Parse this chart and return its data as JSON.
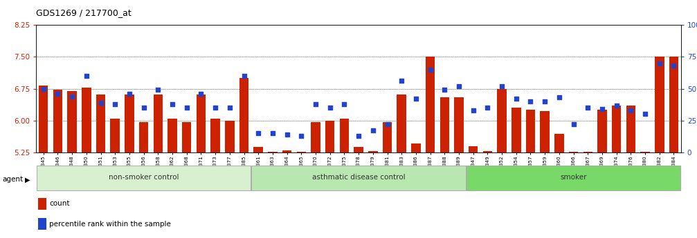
{
  "title": "GDS1269 / 217700_at",
  "samples": [
    "GSM38345",
    "GSM38346",
    "GSM38348",
    "GSM38350",
    "GSM38351",
    "GSM38353",
    "GSM38355",
    "GSM38356",
    "GSM38358",
    "GSM38362",
    "GSM38368",
    "GSM38371",
    "GSM38373",
    "GSM38377",
    "GSM38385",
    "GSM38361",
    "GSM38363",
    "GSM38364",
    "GSM38365",
    "GSM38370",
    "GSM38372",
    "GSM38375",
    "GSM38378",
    "GSM38379",
    "GSM38381",
    "GSM38383",
    "GSM38386",
    "GSM38387",
    "GSM38388",
    "GSM38389",
    "GSM38347",
    "GSM38349",
    "GSM38352",
    "GSM38354",
    "GSM38357",
    "GSM38359",
    "GSM38360",
    "GSM38366",
    "GSM38367",
    "GSM38369",
    "GSM38374",
    "GSM38376",
    "GSM38380",
    "GSM38382",
    "GSM38384"
  ],
  "bar_values": [
    6.82,
    6.72,
    6.7,
    6.78,
    6.62,
    6.05,
    6.62,
    5.97,
    6.62,
    6.05,
    5.97,
    6.62,
    6.05,
    6.0,
    7.0,
    5.38,
    5.27,
    5.3,
    5.27,
    5.97,
    6.0,
    6.05,
    5.38,
    5.28,
    5.97,
    6.62,
    5.45,
    7.5,
    6.55,
    6.55,
    5.4,
    5.28,
    6.75,
    6.3,
    6.25,
    6.22,
    5.68,
    5.27,
    5.27,
    6.25,
    6.35,
    6.35,
    5.27,
    7.5,
    7.5
  ],
  "percentile_values": [
    50,
    46,
    44,
    60,
    39,
    38,
    46,
    35,
    49,
    38,
    35,
    46,
    35,
    35,
    60,
    15,
    15,
    14,
    13,
    38,
    35,
    38,
    13,
    17,
    22,
    56,
    42,
    65,
    49,
    52,
    33,
    35,
    52,
    42,
    40,
    40,
    43,
    22,
    35,
    34,
    37,
    33,
    30,
    70,
    68
  ],
  "groups": [
    {
      "label": "non-smoker control",
      "start": 0,
      "end": 15,
      "color": "#d8f0d0"
    },
    {
      "label": "asthmatic disease control",
      "start": 15,
      "end": 30,
      "color": "#b8e8b0"
    },
    {
      "label": "smoker",
      "start": 30,
      "end": 45,
      "color": "#78d868"
    }
  ],
  "y_min": 5.25,
  "y_max": 8.25,
  "y_ticks": [
    5.25,
    6.0,
    6.75,
    7.5,
    8.25
  ],
  "right_y_ticks": [
    0,
    25,
    50,
    75,
    100
  ],
  "bar_color": "#cc2200",
  "dot_color": "#2244cc",
  "bar_width": 0.65,
  "background_color": "#ffffff"
}
